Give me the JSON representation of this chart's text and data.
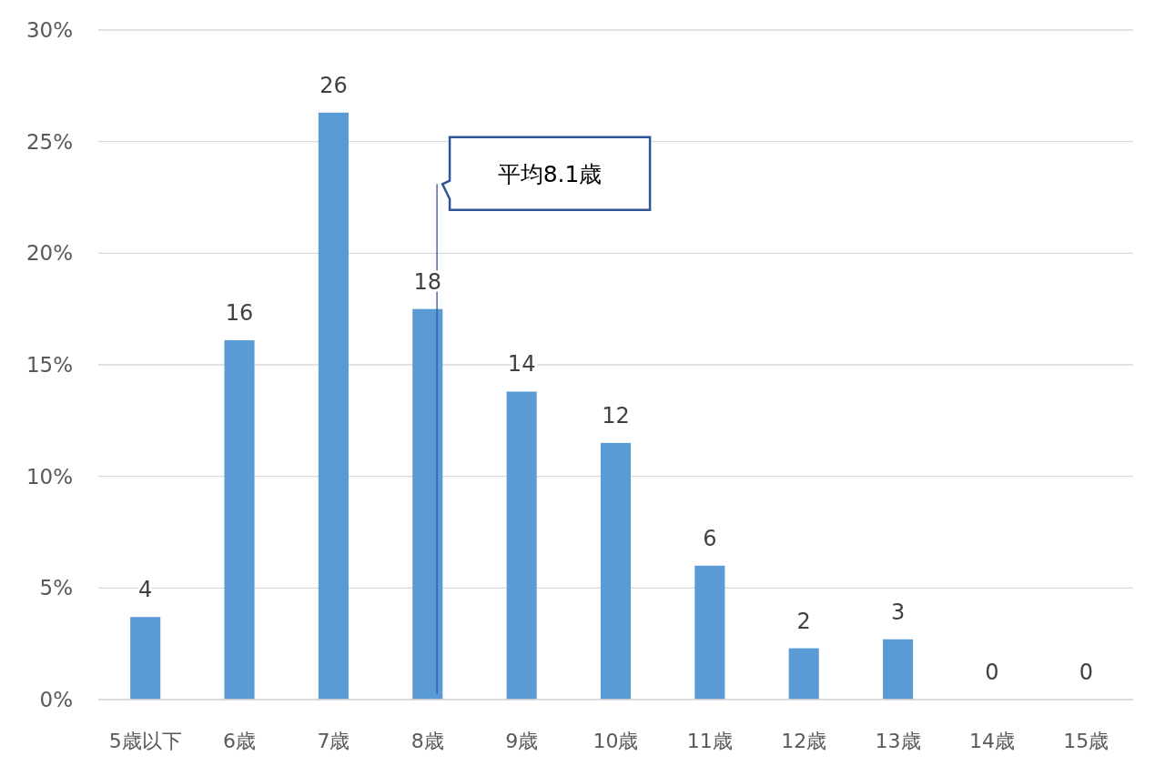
{
  "chart_data": {
    "type": "bar",
    "x": [
      5,
      6,
      7,
      8,
      9,
      10,
      11,
      12,
      13,
      14,
      15
    ],
    "values": [
      3.7,
      16.1,
      26.3,
      17.5,
      13.8,
      11.5,
      6.0,
      2.3,
      2.7,
      0,
      0
    ],
    "value_labels": [
      "4",
      "16",
      "26",
      "18",
      "14",
      "12",
      "6",
      "2",
      "3",
      "0",
      "0"
    ],
    "color": "#5b9bd5",
    "xlim": [
      4.5,
      15.5
    ],
    "xticks": [
      {
        "value": 5,
        "label": "5歳以下"
      },
      {
        "value": 6,
        "label": "6歳"
      },
      {
        "value": 7,
        "label": "7歳"
      },
      {
        "value": 8,
        "label": "8歳"
      },
      {
        "value": 9,
        "label": "9歳"
      },
      {
        "value": 10,
        "label": "10歳"
      },
      {
        "value": 11,
        "label": "11歳"
      },
      {
        "value": 12,
        "label": "12歳"
      },
      {
        "value": 13,
        "label": "13歳"
      },
      {
        "value": 14,
        "label": "14歳"
      },
      {
        "value": 15,
        "label": "15歳"
      }
    ],
    "ylim": [
      0,
      30
    ],
    "yticks": [
      {
        "value": 0,
        "label": "0%"
      },
      {
        "value": 5,
        "label": "5%"
      },
      {
        "value": 10,
        "label": "10%"
      },
      {
        "value": 15,
        "label": "15%"
      },
      {
        "value": 20,
        "label": "20%"
      },
      {
        "value": 25,
        "label": "25%"
      },
      {
        "value": 30,
        "label": "30%"
      }
    ],
    "ref_lines": [
      {
        "axis": "x",
        "value": 8.1,
        "label": "平均8.1歳",
        "color": "#2f5597"
      }
    ],
    "grid": "y"
  }
}
